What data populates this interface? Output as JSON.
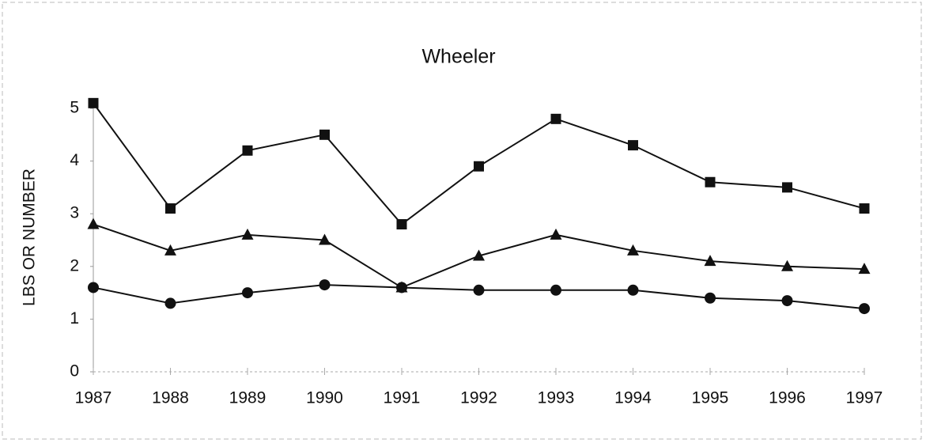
{
  "chart_data": {
    "type": "line",
    "title": "Wheeler",
    "ylabel": "LBS OR NUMBER",
    "x": [
      1987,
      1988,
      1989,
      1990,
      1991,
      1992,
      1993,
      1994,
      1995,
      1996,
      1997
    ],
    "xlim": [
      1987,
      1997
    ],
    "ylim": [
      0,
      5
    ],
    "yticks": [
      0,
      1,
      2,
      3,
      4,
      5
    ],
    "series": [
      {
        "marker": "square",
        "color": "#111111",
        "values": [
          5.1,
          3.1,
          4.2,
          4.5,
          2.8,
          3.9,
          4.8,
          4.3,
          3.6,
          3.5,
          3.1
        ]
      },
      {
        "marker": "triangle",
        "color": "#111111",
        "values": [
          2.8,
          2.3,
          2.6,
          2.5,
          1.6,
          2.2,
          2.6,
          2.3,
          2.1,
          2.0,
          1.95
        ]
      },
      {
        "marker": "circle",
        "color": "#111111",
        "values": [
          1.6,
          1.3,
          1.5,
          1.65,
          1.6,
          1.55,
          1.55,
          1.55,
          1.4,
          1.35,
          1.2
        ]
      }
    ]
  }
}
